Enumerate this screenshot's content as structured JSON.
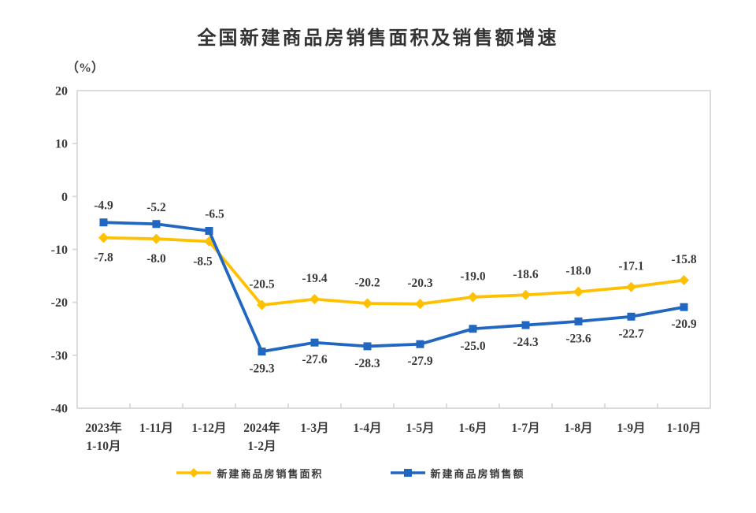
{
  "chart_data": {
    "type": "line",
    "title": "全国新建商品房销售面积及销售额增速",
    "unit_label": "（%）",
    "categories": [
      "2023年\n1-10月",
      "1-11月",
      "1-12月",
      "2024年\n1-2月",
      "1-3月",
      "1-4月",
      "1-5月",
      "1-6月",
      "1-7月",
      "1-8月",
      "1-9月",
      "1-10月"
    ],
    "series": [
      {
        "name": "新建商品房销售面积",
        "marker": "diamond",
        "color": "#FFC000",
        "values": [
          -7.8,
          -8.0,
          -8.5,
          -20.5,
          -19.4,
          -20.2,
          -20.3,
          -19.0,
          -18.6,
          -18.0,
          -17.1,
          -15.8
        ]
      },
      {
        "name": "新建商品房销售额",
        "marker": "square",
        "color": "#2166C0",
        "values": [
          -4.9,
          -5.2,
          -6.5,
          -29.3,
          -27.6,
          -28.3,
          -27.9,
          -25.0,
          -24.3,
          -23.6,
          -22.7,
          -20.9
        ]
      }
    ],
    "y_ticks": [
      20,
      10,
      0,
      -10,
      -20,
      -30,
      -40
    ],
    "ylim": [
      -40,
      20
    ],
    "grid": false,
    "legend_position": "bottom",
    "axis_color": "#D9D9D9",
    "label_color": "#3A3A3A"
  }
}
